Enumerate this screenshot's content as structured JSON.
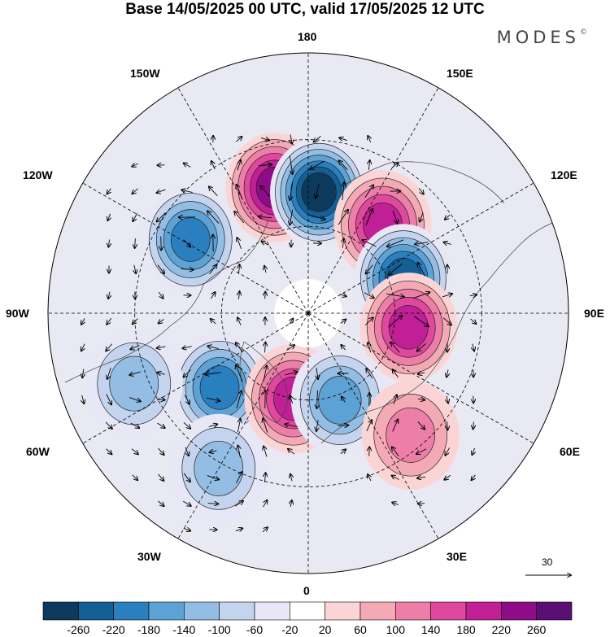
{
  "title": "Base 14/05/2025 00 UTC, valid 17/05/2025 12 UTC",
  "brand": "MODES",
  "brand_mark": "©",
  "longitude_labels": {
    "top": "180",
    "bottom": "0",
    "left": "90W",
    "right": "90E",
    "upper_left_outer": "120W",
    "upper_left_inner": "150W",
    "upper_right_inner": "150E",
    "upper_right_outer": "120E",
    "lower_left_outer": "60W",
    "lower_left_inner": "30W",
    "lower_right_inner": "30E",
    "lower_right_outer": "60E"
  },
  "vector_reference": "30",
  "colorbar": {
    "colors": [
      "#0d3a5c",
      "#145f93",
      "#2a7fbf",
      "#5da2d4",
      "#93bde3",
      "#c4d4ee",
      "#e7e7f6",
      "#ffffff",
      "#fbd5d5",
      "#f3aab4",
      "#ec7ea7",
      "#e0489e",
      "#c01f96",
      "#8e0c87",
      "#5a0f74"
    ],
    "ticks": [
      "-260",
      "-220",
      "-180",
      "-140",
      "-100",
      "-60",
      "-20",
      "20",
      "60",
      "100",
      "140",
      "180",
      "220",
      "260"
    ]
  },
  "anomaly_centres": [
    {
      "sign": "positive",
      "level": 220,
      "lon": -165,
      "lat": 45
    },
    {
      "sign": "negative",
      "level": -260,
      "lon": 175,
      "lat": 48
    },
    {
      "sign": "positive",
      "level": 180,
      "lon": 140,
      "lat": 50
    },
    {
      "sign": "negative",
      "level": -180,
      "lon": -122,
      "lat": 42
    },
    {
      "sign": "negative",
      "level": -220,
      "lon": 110,
      "lat": 55
    },
    {
      "sign": "positive",
      "level": 180,
      "lon": 82,
      "lat": 55
    },
    {
      "sign": "negative",
      "level": -180,
      "lon": -50,
      "lat": 50
    },
    {
      "sign": "positive",
      "level": 180,
      "lon": -10,
      "lat": 60
    },
    {
      "sign": "negative",
      "level": -140,
      "lon": 20,
      "lat": 58
    },
    {
      "sign": "negative",
      "level": -100,
      "lon": -30,
      "lat": 28
    },
    {
      "sign": "negative",
      "level": -100,
      "lon": -68,
      "lat": 25
    },
    {
      "sign": "positive",
      "level": 100,
      "lon": 40,
      "lat": 35
    }
  ]
}
